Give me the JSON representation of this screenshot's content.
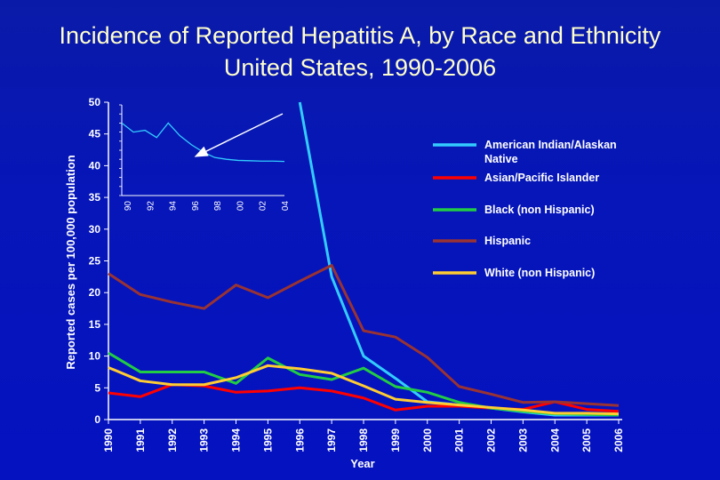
{
  "chart_data": {
    "type": "line",
    "title_lines": [
      "Incidence of Reported Hepatitis A, by Race and Ethnicity",
      "United States, 1990-2006"
    ],
    "xlabel": "Year",
    "ylabel": "Reported cases per 100,000 population",
    "categories": [
      "1990",
      "1991",
      "1992",
      "1993",
      "1994",
      "1995",
      "1996",
      "1997",
      "1998",
      "1999",
      "2000",
      "2001",
      "2002",
      "2003",
      "2004",
      "2005",
      "2006"
    ],
    "ylim": [
      0,
      50
    ],
    "yticks": [
      0,
      5,
      10,
      15,
      20,
      25,
      30,
      35,
      40,
      45,
      50
    ],
    "grid": false,
    "legend_position": "right",
    "series": [
      {
        "name": "American Indian/Alaskan Native",
        "color": "#33ccff",
        "values": [
          null,
          null,
          null,
          null,
          null,
          null,
          null,
          22.5,
          10,
          6.5,
          2.8,
          2.3,
          1.8,
          1.2,
          0.7,
          0.7,
          0.7
        ],
        "enters_from_above": {
          "x_index": 6.0,
          "value": 50
        }
      },
      {
        "name": "Asian/Pacific Islander",
        "color": "#ff0000",
        "values": [
          4.2,
          3.6,
          5.5,
          5.3,
          4.3,
          4.5,
          5.0,
          4.5,
          3.4,
          1.5,
          2.1,
          2.1,
          1.8,
          1.6,
          2.8,
          1.6,
          1.3
        ]
      },
      {
        "name": "Black (non Hispanic)",
        "color": "#22cc44",
        "values": [
          10.5,
          7.5,
          7.5,
          7.5,
          5.7,
          9.7,
          7.1,
          6.3,
          8.1,
          5.2,
          4.3,
          2.7,
          1.8,
          1.3,
          0.9,
          0.8,
          0.7
        ]
      },
      {
        "name": "Hispanic",
        "color": "#993333",
        "values": [
          23,
          19.7,
          18.5,
          17.5,
          21.2,
          19.2,
          21.8,
          24.3,
          14,
          13,
          9.8,
          5.2,
          4,
          2.7,
          2.8,
          2.5,
          2.2
        ]
      },
      {
        "name": "White (non Hispanic)",
        "color": "#ffcc33",
        "values": [
          8.2,
          6.1,
          5.5,
          5.5,
          6.6,
          8.5,
          8,
          7.3,
          5.3,
          3.2,
          2.7,
          2.3,
          1.9,
          1.5,
          1.0,
          1.0,
          0.9
        ]
      }
    ],
    "inset": {
      "type": "line",
      "color": "#33ccff",
      "x_tick_labels": [
        "90",
        "92",
        "94",
        "96",
        "98",
        "00",
        "02",
        "04"
      ],
      "x": [
        1990,
        1991,
        1992,
        1993,
        1994,
        1995,
        1996,
        1997,
        1998,
        1999,
        2000,
        2001,
        2002,
        2003,
        2004
      ],
      "ylim": [
        0,
        250
      ],
      "yticks": [
        0,
        25,
        50,
        75,
        100,
        125,
        150,
        175,
        200,
        225,
        250
      ],
      "values": [
        200,
        175,
        180,
        160,
        200,
        165,
        140,
        120,
        105,
        100,
        97,
        96,
        95,
        95,
        94
      ]
    }
  }
}
